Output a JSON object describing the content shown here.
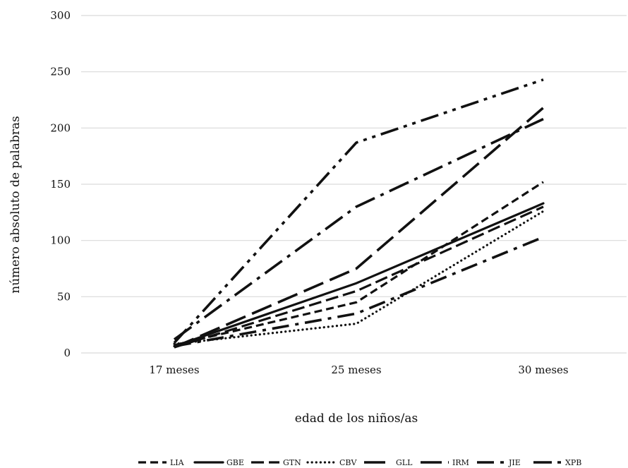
{
  "chart_data": {
    "type": "line",
    "title": "",
    "xlabel": "edad de los niños/as",
    "ylabel": "número absoluto de palabras",
    "categories": [
      "17 meses",
      "25 meses",
      "30 meses"
    ],
    "ylim": [
      0,
      300
    ],
    "yticks": [
      0,
      50,
      100,
      150,
      200,
      250,
      300
    ],
    "grid": "horizontal",
    "legend_position": "bottom",
    "series": [
      {
        "name": "LIA",
        "values": [
          7,
          45,
          152
        ]
      },
      {
        "name": "GBE",
        "values": [
          6,
          62,
          133
        ]
      },
      {
        "name": "GTN",
        "values": [
          5,
          55,
          130
        ]
      },
      {
        "name": "CBV",
        "values": [
          8,
          26,
          126
        ]
      },
      {
        "name": "GLL",
        "values": [
          5,
          75,
          218
        ]
      },
      {
        "name": "IRM",
        "values": [
          12,
          130,
          208
        ]
      },
      {
        "name": "JIE",
        "values": [
          6,
          35,
          103
        ]
      },
      {
        "name": "XPB",
        "values": [
          9,
          187,
          243
        ]
      }
    ]
  }
}
